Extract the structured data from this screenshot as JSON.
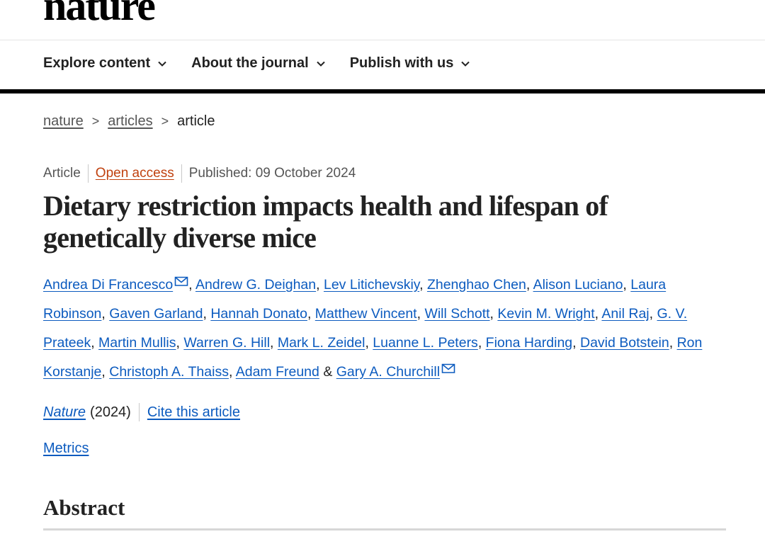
{
  "brand": {
    "name": "nature"
  },
  "nav": {
    "items": [
      {
        "label": "Explore content"
      },
      {
        "label": "About the journal"
      },
      {
        "label": "Publish with us"
      }
    ]
  },
  "breadcrumb": {
    "items": [
      "nature",
      "articles"
    ],
    "current": "article",
    "separator": ">"
  },
  "meta": {
    "type": "Article",
    "access": "Open access",
    "published": "Published: 09 October 2024"
  },
  "article": {
    "title": "Dietary restriction impacts health and lifespan of genetically diverse mice"
  },
  "authors": [
    {
      "name": "Andrea Di Francesco",
      "mail": true
    },
    {
      "name": "Andrew G. Deighan"
    },
    {
      "name": "Lev Litichevskiy"
    },
    {
      "name": "Zhenghao Chen"
    },
    {
      "name": "Alison Luciano"
    },
    {
      "name": "Laura Robinson"
    },
    {
      "name": "Gaven Garland"
    },
    {
      "name": "Hannah Donato"
    },
    {
      "name": "Matthew Vincent"
    },
    {
      "name": "Will Schott"
    },
    {
      "name": "Kevin M. Wright"
    },
    {
      "name": "Anil Raj"
    },
    {
      "name": "G. V. Prateek"
    },
    {
      "name": "Martin Mullis"
    },
    {
      "name": "Warren G. Hill"
    },
    {
      "name": "Mark L. Zeidel"
    },
    {
      "name": "Luanne L. Peters"
    },
    {
      "name": "Fiona Harding"
    },
    {
      "name": "David Botstein"
    },
    {
      "name": "Ron Korstanje"
    },
    {
      "name": "Christoph A. Thaiss"
    },
    {
      "name": "Adam Freund"
    },
    {
      "name": "Gary A. Churchill",
      "mail": true
    }
  ],
  "authors_joiner": "&",
  "citation": {
    "journal": "Nature",
    "year": "(2024)",
    "cite_label": "Cite this article"
  },
  "metrics_label": "Metrics",
  "abstract_heading": "Abstract",
  "colors": {
    "link": "#0c5bbf",
    "open_access": "#c0410f",
    "text": "#222222"
  },
  "icons": [
    "chevron-down-icon",
    "mail-icon"
  ]
}
